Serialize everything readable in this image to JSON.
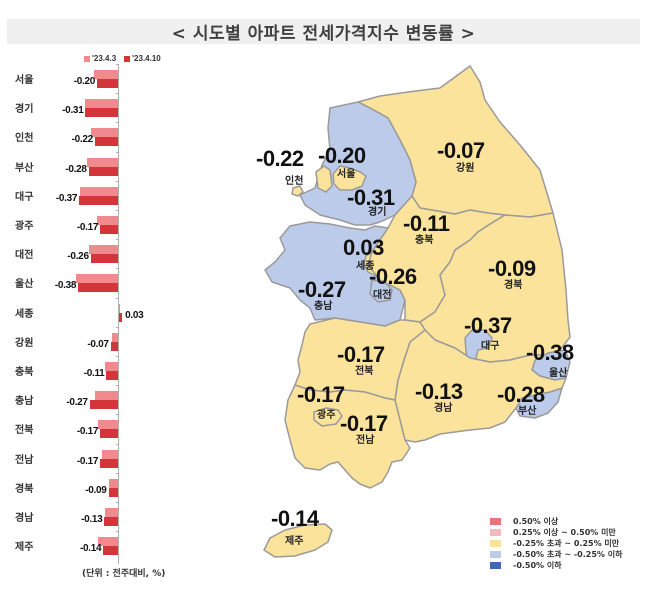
{
  "title": "< 시도별 아파트 전세가격지수 변동률 >",
  "bar_legend": [
    {
      "label": "'23.4.3",
      "color": "#f08a8e"
    },
    {
      "label": "'23.4.10",
      "color": "#d4353b"
    }
  ],
  "unit_note": "(단위 : 전주대비, %)",
  "regions": [
    {
      "name": "서울",
      "prev": -0.23,
      "cur": -0.2,
      "cur_label": "-0.20"
    },
    {
      "name": "경기",
      "prev": -0.31,
      "cur": -0.31,
      "cur_label": "-0.31"
    },
    {
      "name": "인천",
      "prev": -0.26,
      "cur": -0.22,
      "cur_label": "-0.22"
    },
    {
      "name": "부산",
      "prev": -0.3,
      "cur": -0.28,
      "cur_label": "-0.28"
    },
    {
      "name": "대구",
      "prev": -0.36,
      "cur": -0.37,
      "cur_label": "-0.37"
    },
    {
      "name": "광주",
      "prev": -0.2,
      "cur": -0.17,
      "cur_label": "-0.17"
    },
    {
      "name": "대전",
      "prev": -0.28,
      "cur": -0.26,
      "cur_label": "-0.26"
    },
    {
      "name": "울산",
      "prev": -0.4,
      "cur": -0.38,
      "cur_label": "-0.38"
    },
    {
      "name": "세종",
      "prev": 0.01,
      "cur": 0.03,
      "cur_label": "0.03"
    },
    {
      "name": "강원",
      "prev": -0.06,
      "cur": -0.07,
      "cur_label": "-0.07"
    },
    {
      "name": "충북",
      "prev": -0.12,
      "cur": -0.11,
      "cur_label": "-0.11"
    },
    {
      "name": "충남",
      "prev": -0.22,
      "cur": -0.27,
      "cur_label": "-0.27"
    },
    {
      "name": "전북",
      "prev": -0.19,
      "cur": -0.17,
      "cur_label": "-0.17"
    },
    {
      "name": "전남",
      "prev": -0.15,
      "cur": -0.17,
      "cur_label": "-0.17"
    },
    {
      "name": "경북",
      "prev": -0.09,
      "cur": -0.09,
      "cur_label": "-0.09"
    },
    {
      "name": "경남",
      "prev": -0.12,
      "cur": -0.13,
      "cur_label": "-0.13"
    },
    {
      "name": "제주",
      "prev": -0.19,
      "cur": -0.14,
      "cur_label": "-0.14"
    }
  ],
  "map": {
    "labels": [
      {
        "name": "인천",
        "value": "-0.22",
        "vx": 256,
        "vy": 148,
        "nx": 285,
        "ny": 177
      },
      {
        "name": "서울",
        "value": "-0.20",
        "vx": 318,
        "vy": 145,
        "nx": 337,
        "ny": 170
      },
      {
        "name": "경기",
        "value": "-0.31",
        "vx": 347,
        "vy": 187,
        "nx": 368,
        "ny": 208
      },
      {
        "name": "강원",
        "value": "-0.07",
        "vx": 437,
        "vy": 140,
        "nx": 456,
        "ny": 164
      },
      {
        "name": "충북",
        "value": "-0.11",
        "vx": 403,
        "vy": 213,
        "nx": 415,
        "ny": 236
      },
      {
        "name": "세종",
        "value": "0.03",
        "vx": 343,
        "vy": 237,
        "nx": 356,
        "ny": 262
      },
      {
        "name": "대전",
        "value": "-0.26",
        "vx": 369,
        "vy": 266,
        "nx": 373,
        "ny": 291
      },
      {
        "name": "충남",
        "value": "-0.27",
        "vx": 298,
        "vy": 279,
        "nx": 314,
        "ny": 302
      },
      {
        "name": "경북",
        "value": "-0.09",
        "vx": 488,
        "vy": 258,
        "nx": 504,
        "ny": 281
      },
      {
        "name": "대구",
        "value": "-0.37",
        "vx": 464,
        "vy": 315,
        "nx": 481,
        "ny": 342
      },
      {
        "name": "울산",
        "value": "-0.38",
        "vx": 526,
        "vy": 342,
        "nx": 549,
        "ny": 369
      },
      {
        "name": "전북",
        "value": "-0.17",
        "vx": 337,
        "vy": 344,
        "nx": 355,
        "ny": 367
      },
      {
        "name": "경남",
        "value": "-0.13",
        "vx": 415,
        "vy": 381,
        "nx": 434,
        "ny": 404
      },
      {
        "name": "부산",
        "value": "-0.28",
        "vx": 497,
        "vy": 384,
        "nx": 518,
        "ny": 407
      },
      {
        "name": "광주",
        "value": "-0.17",
        "vx": 297,
        "vy": 384,
        "nx": 317,
        "ny": 411
      },
      {
        "name": "전남",
        "value": "-0.17",
        "vx": 340,
        "vy": 413,
        "nx": 356,
        "ny": 436
      },
      {
        "name": "제주",
        "value": "-0.14",
        "vx": 271,
        "vy": 508,
        "nx": 285,
        "ny": 537
      }
    ],
    "legend": [
      {
        "label": "0.50% 이상",
        "color": "#e8737a"
      },
      {
        "label": "0.25% 이상 ~ 0.50% 미만",
        "color": "#f4b8bf"
      },
      {
        "label": "-0.25% 초과 ~ 0.25% 미만",
        "color": "#fbe39c"
      },
      {
        "label": "-0.50% 초과 ~ -0.25% 이하",
        "color": "#bccbe9"
      },
      {
        "label": "-0.50% 이하",
        "color": "#3f67b5"
      }
    ]
  },
  "chart_data": {
    "type": "bar",
    "orientation": "horizontal",
    "title": "시도별 아파트 전세가격지수 변동률",
    "categories": [
      "서울",
      "경기",
      "인천",
      "부산",
      "대구",
      "광주",
      "대전",
      "울산",
      "세종",
      "강원",
      "충북",
      "충남",
      "전북",
      "전남",
      "경북",
      "경남",
      "제주"
    ],
    "series": [
      {
        "name": "'23.4.3",
        "values": [
          -0.23,
          -0.31,
          -0.26,
          -0.3,
          -0.36,
          -0.2,
          -0.28,
          -0.4,
          0.01,
          -0.06,
          -0.12,
          -0.22,
          -0.19,
          -0.15,
          -0.09,
          -0.12,
          -0.19
        ]
      },
      {
        "name": "'23.4.10",
        "values": [
          -0.2,
          -0.31,
          -0.22,
          -0.28,
          -0.37,
          -0.17,
          -0.26,
          -0.38,
          0.03,
          -0.07,
          -0.11,
          -0.27,
          -0.17,
          -0.17,
          -0.09,
          -0.13,
          -0.14
        ]
      }
    ],
    "xlabel": "(단위 : 전주대비, %)",
    "ylabel": "",
    "legend_position": "top",
    "grid": false
  }
}
